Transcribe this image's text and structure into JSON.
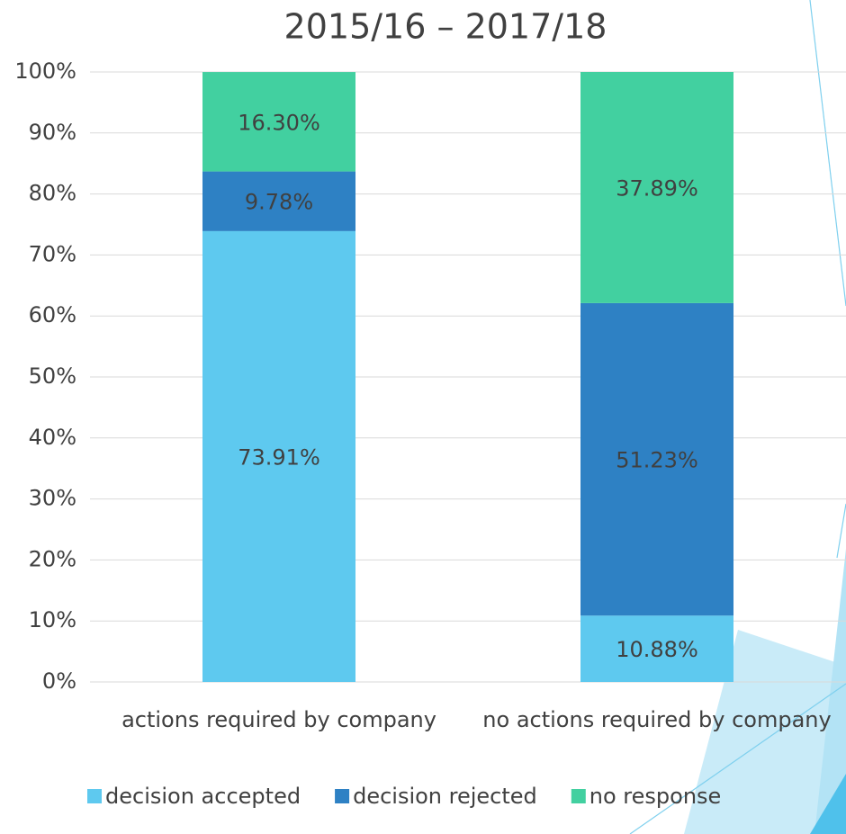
{
  "chart_data": {
    "type": "stacked_bar",
    "title": "2015/16 – 2017/18",
    "categories": [
      "actions required by company",
      "no actions required by company"
    ],
    "series": [
      {
        "name": "decision accepted",
        "color": "#5ec9ef",
        "values": [
          73.91,
          10.88
        ],
        "value_labels": [
          "73.91%",
          "10.88%"
        ]
      },
      {
        "name": "decision rejected",
        "color": "#2e81c4",
        "values": [
          9.78,
          51.23
        ],
        "value_labels": [
          "9.78%",
          "51.23%"
        ]
      },
      {
        "name": "no response",
        "color": "#42d0a0",
        "values": [
          16.3,
          37.89
        ],
        "value_labels": [
          "16.30%",
          "37.89%"
        ]
      }
    ],
    "ylim": [
      0,
      100
    ],
    "yticks": [
      {
        "value": 0,
        "label": "0%"
      },
      {
        "value": 10,
        "label": "10%"
      },
      {
        "value": 20,
        "label": "20%"
      },
      {
        "value": 30,
        "label": "30%"
      },
      {
        "value": 40,
        "label": "40%"
      },
      {
        "value": 50,
        "label": "50%"
      },
      {
        "value": 60,
        "label": "60%"
      },
      {
        "value": 70,
        "label": "70%"
      },
      {
        "value": 80,
        "label": "80%"
      },
      {
        "value": 90,
        "label": "90%"
      },
      {
        "value": 100,
        "label": "100%"
      }
    ],
    "grid": true,
    "legend": "bottom"
  }
}
